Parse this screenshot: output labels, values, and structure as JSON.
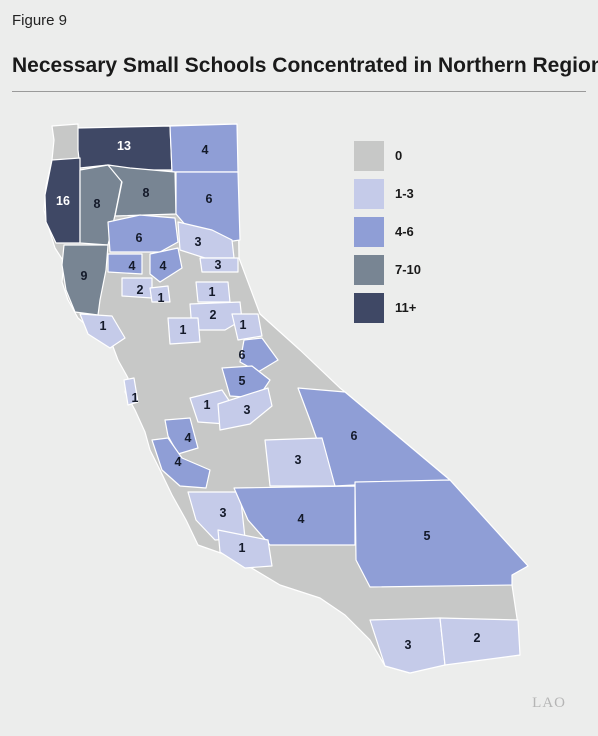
{
  "figure_label": "Figure 9",
  "title": "Necessary Small Schools Concentrated in Northern Region",
  "logo_text": "LAO",
  "colors": {
    "zero": "#c7c8c7",
    "one_to_three": "#c5cbe9",
    "four_to_six": "#8f9ed6",
    "seven_to_ten": "#788593",
    "eleven_plus": "#3f4865",
    "background": "#ecedec"
  },
  "legend": [
    {
      "label": "0",
      "color": "#c7c8c7"
    },
    {
      "label": "1-3",
      "color": "#c5cbe9"
    },
    {
      "label": "4-6",
      "color": "#8f9ed6"
    },
    {
      "label": "7-10",
      "color": "#788593"
    },
    {
      "label": "11+",
      "color": "#3f4865"
    }
  ],
  "map_values": [
    {
      "value": "13",
      "category": "eleven_plus"
    },
    {
      "value": "4",
      "category": "four_to_six"
    },
    {
      "value": "16",
      "category": "eleven_plus"
    },
    {
      "value": "8",
      "category": "seven_to_ten"
    },
    {
      "value": "8",
      "category": "seven_to_ten"
    },
    {
      "value": "6",
      "category": "four_to_six"
    },
    {
      "value": "6",
      "category": "four_to_six"
    },
    {
      "value": "3",
      "category": "one_to_three"
    },
    {
      "value": "9",
      "category": "seven_to_ten"
    },
    {
      "value": "4",
      "category": "four_to_six"
    },
    {
      "value": "4",
      "category": "four_to_six"
    },
    {
      "value": "3",
      "category": "one_to_three"
    },
    {
      "value": "2",
      "category": "one_to_three"
    },
    {
      "value": "1",
      "category": "one_to_three"
    },
    {
      "value": "1",
      "category": "one_to_three"
    },
    {
      "value": "2",
      "category": "one_to_three"
    },
    {
      "value": "1",
      "category": "one_to_three"
    },
    {
      "value": "1",
      "category": "one_to_three"
    },
    {
      "value": "1",
      "category": "one_to_three"
    },
    {
      "value": "6",
      "category": "four_to_six"
    },
    {
      "value": "5",
      "category": "four_to_six"
    },
    {
      "value": "1",
      "category": "one_to_three"
    },
    {
      "value": "1",
      "category": "one_to_three"
    },
    {
      "value": "3",
      "category": "one_to_three"
    },
    {
      "value": "6",
      "category": "four_to_six"
    },
    {
      "value": "4",
      "category": "four_to_six"
    },
    {
      "value": "4",
      "category": "four_to_six"
    },
    {
      "value": "3",
      "category": "one_to_three"
    },
    {
      "value": "3",
      "category": "one_to_three"
    },
    {
      "value": "4",
      "category": "four_to_six"
    },
    {
      "value": "5",
      "category": "four_to_six"
    },
    {
      "value": "1",
      "category": "one_to_three"
    },
    {
      "value": "3",
      "category": "one_to_three"
    },
    {
      "value": "2",
      "category": "one_to_three"
    }
  ]
}
